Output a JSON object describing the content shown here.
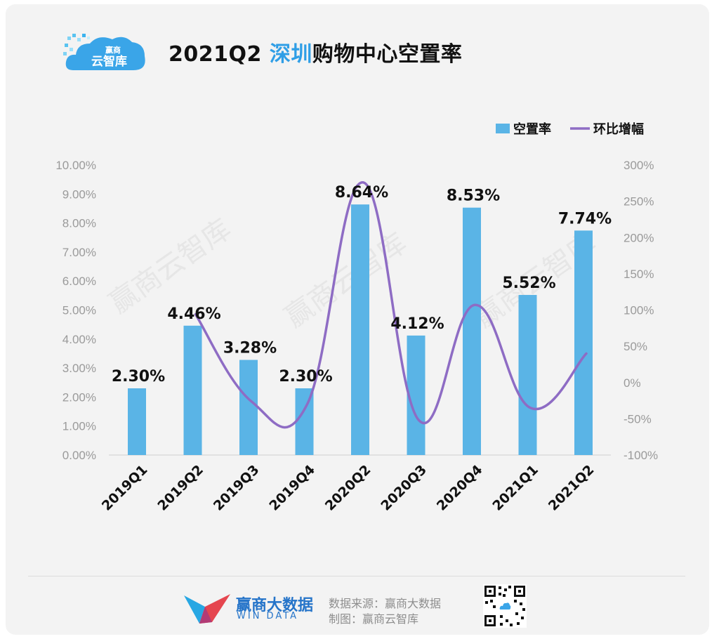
{
  "header": {
    "logo_text_1": "赢商",
    "logo_text_2": "云智库",
    "title_prefix": "2021Q2 ",
    "title_highlight": "深圳",
    "title_suffix": "购物中心空置率"
  },
  "chart_data": {
    "type": "bar",
    "title": "2021Q2 深圳购物中心空置率",
    "categories": [
      "2019Q1",
      "2019Q2",
      "2019Q3",
      "2019Q4",
      "2020Q2",
      "2020Q3",
      "2020Q4",
      "2021Q1",
      "2021Q2"
    ],
    "series": [
      {
        "name": "空置率",
        "type": "bar",
        "axis": "left",
        "color": "#5ab4e6",
        "values": [
          2.3,
          4.46,
          3.28,
          2.3,
          8.64,
          4.12,
          8.53,
          5.52,
          7.74
        ],
        "labels": [
          "2.30%",
          "4.46%",
          "3.28%",
          "2.30%",
          "8.64%",
          "4.12%",
          "8.53%",
          "5.52%",
          "7.74%"
        ]
      },
      {
        "name": "环比增幅",
        "type": "line",
        "axis": "right",
        "color": "#8e6cc4",
        "values": [
          null,
          94,
          -26,
          -30,
          276,
          -52,
          107,
          -35,
          40
        ]
      }
    ],
    "y_left": {
      "min": 0,
      "max": 10,
      "step": 1,
      "ticks": [
        "0.00%",
        "1.00%",
        "2.00%",
        "3.00%",
        "4.00%",
        "5.00%",
        "6.00%",
        "7.00%",
        "8.00%",
        "9.00%",
        "10.00%"
      ]
    },
    "y_right": {
      "min": -100,
      "max": 300,
      "step": 50,
      "ticks": [
        "-100%",
        "-50%",
        "0%",
        "50%",
        "100%",
        "150%",
        "200%",
        "250%",
        "300%"
      ]
    },
    "legend_position": "top-right",
    "grid": false
  },
  "watermark": "赢商云智库",
  "footer": {
    "brand_name": "赢商大数据",
    "brand_sub": "WIN DATA",
    "source_line": "数据来源：赢商大数据",
    "maker_line": "制图：赢商云智库"
  }
}
